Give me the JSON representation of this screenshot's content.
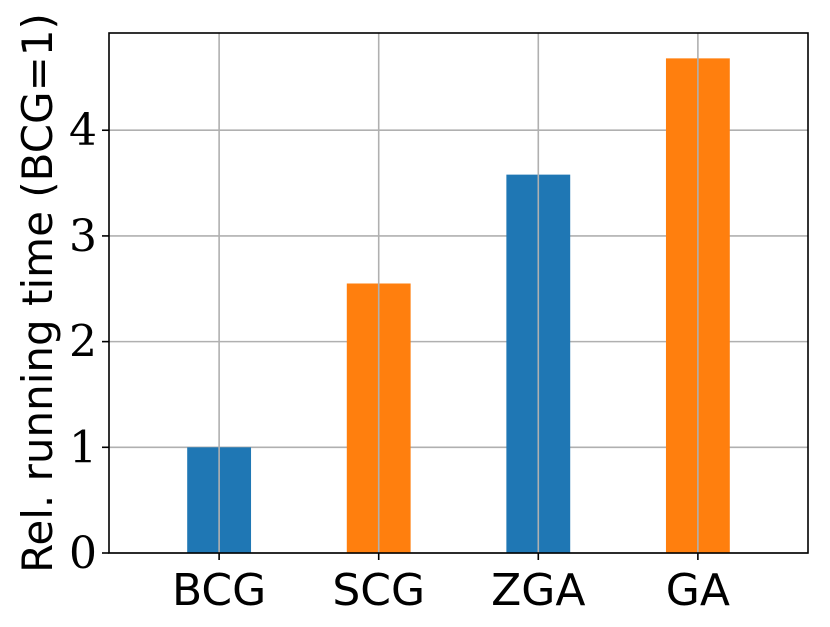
{
  "chart_data": {
    "type": "bar",
    "title": "",
    "xlabel": "",
    "ylabel": "Rel. running time (BCG=1)",
    "categories": [
      "BCG",
      "SCG",
      "ZGA",
      "GA"
    ],
    "values": [
      1.0,
      2.55,
      3.58,
      4.68
    ],
    "colors": [
      "#1f77b4",
      "#ff7f0e",
      "#1f77b4",
      "#ff7f0e"
    ],
    "ylim": [
      0,
      4.92
    ],
    "yticks": [
      0,
      1,
      2,
      3,
      4
    ],
    "grid": true,
    "legend": "none"
  }
}
